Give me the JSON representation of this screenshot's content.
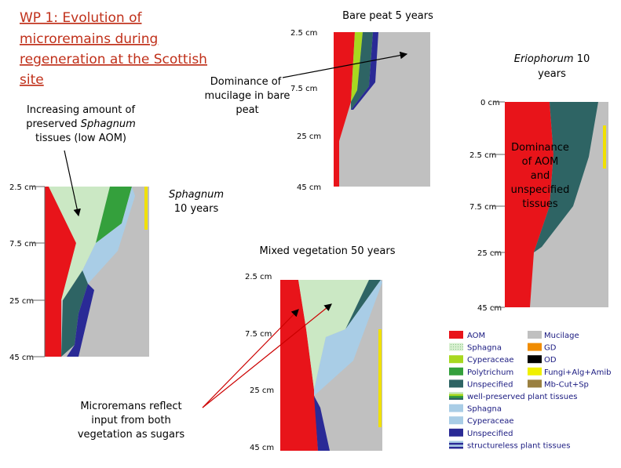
{
  "title": [
    "WP 1: Evolution of",
    "microremains  during",
    "regeneration at the Scottish",
    "site"
  ],
  "notes": {
    "sphagnum_low_aom": [
      "Increasing amount of",
      "preserved",
      "Sphagnum",
      "tissues (low AOM)"
    ],
    "mucilage": [
      "Dominance of",
      "mucilage in bare",
      "peat"
    ],
    "aom": [
      "Dominance",
      "of AOM",
      "and",
      "unspecified",
      "tissues"
    ],
    "sugars": [
      "Microremans reflect",
      "input from both",
      "vegetation as sugars"
    ]
  },
  "panels": [
    {
      "label": [
        "Sphagnum",
        "10 years"
      ],
      "depths": [
        "2.5 cm",
        "7.5 cm",
        "25 cm",
        "45 cm"
      ]
    },
    {
      "label": [
        "Bare peat 5 years"
      ],
      "depths": [
        "2.5 cm",
        "7.5 cm",
        "25 cm",
        "45 cm"
      ]
    },
    {
      "label": [
        "Eriophorum",
        "10",
        "years"
      ],
      "depths": [
        "0 cm",
        "2.5 cm",
        "7.5 cm",
        "25 cm",
        "45 cm"
      ]
    },
    {
      "label": [
        "Mixed vegetation 50 years"
      ],
      "depths": [
        "2.5 cm",
        "7.5 cm",
        "25 cm",
        "45 cm"
      ]
    }
  ],
  "legend": {
    "left": [
      "AOM",
      "Sphagna",
      "Cyperaceae",
      "Polytrichum",
      "Unspecified",
      "well-preserved plant tissues",
      "Sphagna",
      "Cyperaceae",
      "Unspecified",
      "structureless plant tissues"
    ],
    "right": [
      "Mucilage",
      "GD",
      "OD",
      "Fungi+Alg+Amib",
      "Mb-Cut+Sp"
    ]
  }
}
